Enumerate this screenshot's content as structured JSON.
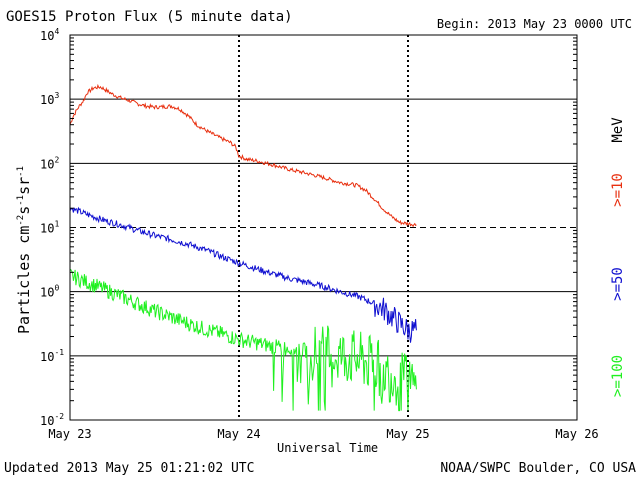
{
  "header": {
    "title": "GOES15 Proton Flux (5 minute data)",
    "begin": "Begin: 2013 May 23 0000 UTC"
  },
  "footer": {
    "updated": "Updated 2013 May 25 01:21:02 UTC",
    "credit": "NOAA/SWPC Boulder, CO USA"
  },
  "energy_labels": {
    "unit": "MeV",
    "e10": ">=10",
    "e50": ">=50",
    "e100": ">=100"
  },
  "colors": {
    "e10": "#e83010",
    "e50": "#1010d0",
    "e100": "#20f020"
  },
  "chart_data": {
    "type": "line",
    "title": "GOES15 Proton Flux (5 minute data)",
    "xlabel": "Universal Time",
    "ylabel": "Particles cm-2 s-1 sr-1",
    "yscale": "log",
    "ylim": [
      0.01,
      10000
    ],
    "xlim": [
      0,
      3
    ],
    "x_units": "days since 2013 May 23 00:00 UTC",
    "x_ticks": [
      {
        "x": 0,
        "label": "May 23"
      },
      {
        "x": 1,
        "label": "May 24"
      },
      {
        "x": 2,
        "label": "May 25"
      },
      {
        "x": 3,
        "label": "May 26"
      }
    ],
    "y_ticks": [
      {
        "value": 0.01,
        "base": "10",
        "exp": "-2"
      },
      {
        "value": 0.1,
        "base": "10",
        "exp": "-1"
      },
      {
        "value": 1,
        "base": "10",
        "exp": "0"
      },
      {
        "value": 10,
        "base": "10",
        "exp": "1"
      },
      {
        "value": 100,
        "base": "10",
        "exp": "2"
      },
      {
        "value": 1000,
        "base": "10",
        "exp": "3"
      },
      {
        "value": 10000,
        "base": "10",
        "exp": "4"
      }
    ],
    "grid": "horizontal decades; dashed line at 10",
    "legend": "right, rotated",
    "series": [
      {
        "name": ">=10 MeV",
        "color": "#e83010",
        "x": [
          0.0,
          0.02,
          0.05,
          0.08,
          0.1,
          0.14,
          0.18,
          0.2,
          0.25,
          0.3,
          0.35,
          0.4,
          0.45,
          0.5,
          0.55,
          0.6,
          0.65,
          0.7,
          0.75,
          0.8,
          0.85,
          0.9,
          0.95,
          0.98,
          1.0,
          1.05,
          1.1,
          1.2,
          1.3,
          1.4,
          1.5,
          1.6,
          1.65,
          1.7,
          1.75,
          1.8,
          1.85,
          1.9,
          1.95,
          2.0,
          2.05
        ],
        "y": [
          400,
          550,
          750,
          950,
          1250,
          1500,
          1550,
          1450,
          1200,
          1050,
          950,
          850,
          780,
          750,
          760,
          780,
          700,
          550,
          400,
          330,
          280,
          240,
          210,
          180,
          130,
          115,
          110,
          95,
          80,
          70,
          60,
          50,
          48,
          45,
          38,
          28,
          20,
          15,
          12,
          11.5,
          11
        ]
      },
      {
        "name": ">=50 MeV",
        "color": "#1010d0",
        "x": [
          0.0,
          0.05,
          0.1,
          0.2,
          0.3,
          0.4,
          0.5,
          0.6,
          0.7,
          0.8,
          0.9,
          1.0,
          1.1,
          1.2,
          1.3,
          1.4,
          1.5,
          1.6,
          1.7,
          1.75,
          1.8,
          1.85,
          1.9,
          1.95,
          2.0,
          2.05
        ],
        "y": [
          20,
          18,
          16,
          13,
          11,
          9,
          7.5,
          6.5,
          5.5,
          4.5,
          3.5,
          2.8,
          2.3,
          1.9,
          1.6,
          1.4,
          1.2,
          1.0,
          0.85,
          0.75,
          0.65,
          0.55,
          0.42,
          0.32,
          0.25,
          0.25
        ]
      },
      {
        "name": ">=100 MeV",
        "color": "#20f020",
        "x": [
          0.0,
          0.1,
          0.2,
          0.3,
          0.4,
          0.5,
          0.6,
          0.7,
          0.8,
          0.9,
          1.0,
          1.1,
          1.2,
          1.3,
          1.4,
          1.5,
          1.6,
          1.7,
          1.8,
          1.9,
          2.0,
          2.05
        ],
        "y": [
          1.8,
          1.4,
          1.1,
          0.85,
          0.65,
          0.5,
          0.4,
          0.32,
          0.26,
          0.22,
          0.18,
          0.16,
          0.14,
          0.13,
          0.12,
          0.11,
          0.1,
          0.09,
          0.07,
          0.05,
          0.04,
          0.03
        ]
      }
    ]
  }
}
